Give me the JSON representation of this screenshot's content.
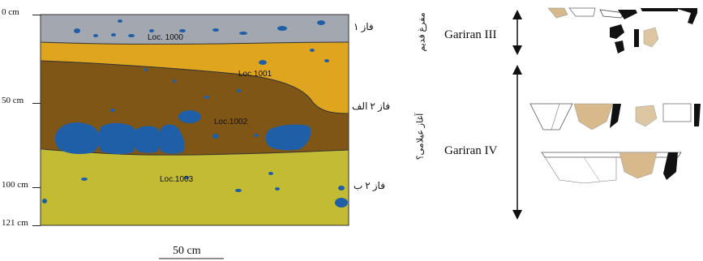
{
  "section": {
    "depth_labels": [
      "0 cm",
      "50 cm",
      "100 cm",
      "121 cm"
    ],
    "layers": [
      {
        "loc": "Loc. 1000",
        "color": "#a3a7b0"
      },
      {
        "loc": "Loc.1001",
        "color": "#e0a51f"
      },
      {
        "loc": "Loc.1002",
        "color": "#805617"
      },
      {
        "loc": "Loc.1003",
        "color": "#c2bb33"
      }
    ],
    "phases": [
      "فاز ۱",
      "فاز ۲ الف",
      "فاز ۲ ب"
    ],
    "stone_color": "#1f5fa8",
    "scale_label": "50 cm"
  },
  "chronology": {
    "periods": [
      "Gariran III",
      "Gariran IV"
    ],
    "vertical_labels": [
      "مفرغ قدیم",
      "آغاز عیلامی؟"
    ]
  }
}
